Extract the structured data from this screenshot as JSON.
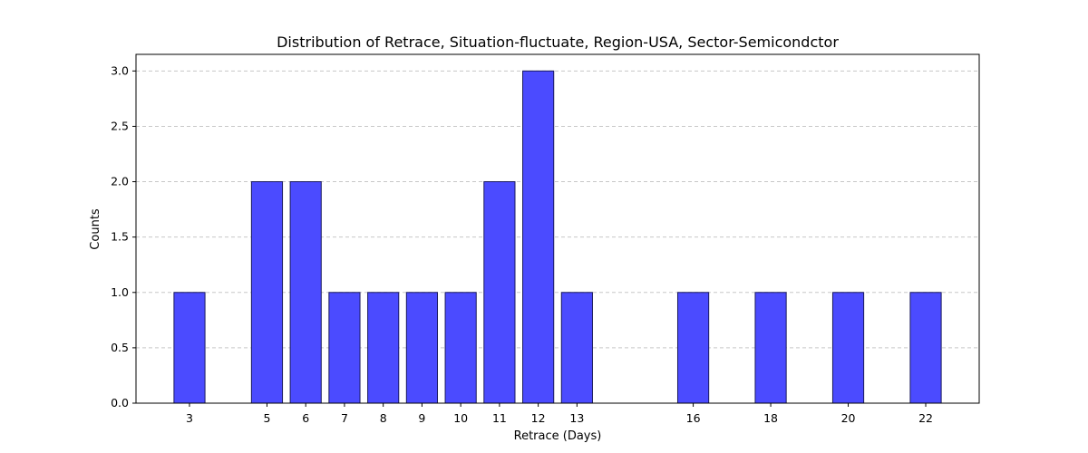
{
  "chart_data": {
    "type": "bar",
    "title": "Distribution of Retrace, Situation-fluctuate, Region-USA, Sector-Semicondctor",
    "xlabel": "Retrace (Days)",
    "ylabel": "Counts",
    "x": [
      3,
      5,
      6,
      7,
      8,
      9,
      10,
      11,
      12,
      13,
      16,
      18,
      20,
      22
    ],
    "values": [
      1,
      2,
      2,
      1,
      1,
      1,
      1,
      2,
      3,
      1,
      1,
      1,
      1,
      1
    ],
    "xlim": [
      1.62,
      23.38
    ],
    "ylim": [
      0,
      3.15
    ],
    "yticks": [
      "0.0",
      "0.5",
      "1.0",
      "1.5",
      "2.0",
      "2.5",
      "3.0"
    ],
    "grid": "y-dashed",
    "colors": {
      "bar_fill": "#4b4bff",
      "bar_edge": "#1a1a5e",
      "grid": "#c8c8c8"
    }
  }
}
